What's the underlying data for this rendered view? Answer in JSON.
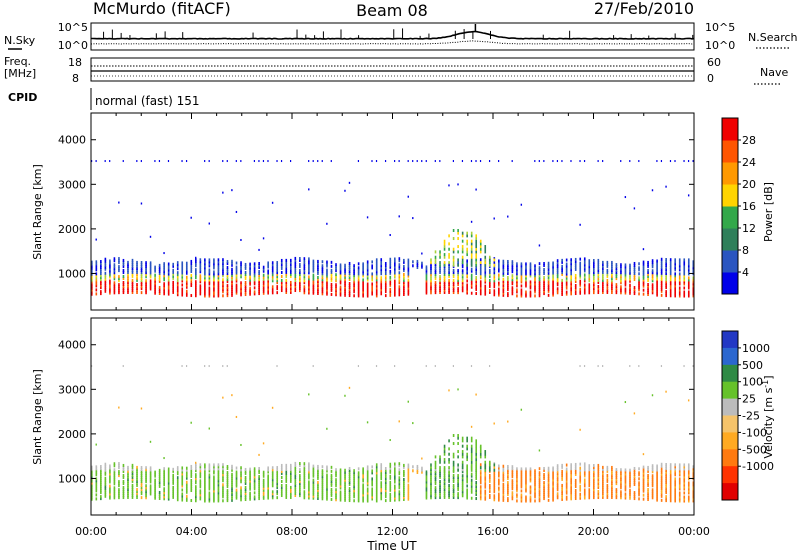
{
  "header": {
    "station": "McMurdo (fitACF)",
    "beam": "Beam 08",
    "date": "27/Feb/2010"
  },
  "status_panels": {
    "nsky_label": "N.Sky",
    "nsky_ticks": [
      "10^5",
      "10^0"
    ],
    "nsearch_label": "N.Search",
    "nsearch_ticks": [
      "10^5",
      "10^0"
    ],
    "freq_label_1": "Freq.",
    "freq_label_2": "[MHz]",
    "freq_ticks": [
      "18",
      "8"
    ],
    "nave_label": "Nave",
    "nave_ticks": [
      "60",
      "0"
    ],
    "cpid_label": "CPID",
    "cpid_value": "normal (fast) 151"
  },
  "colors": {
    "power_scale": [
      "#0000e8",
      "#2a55c0",
      "#2f7f5a",
      "#33a84a",
      "#a8d13a",
      "#ffd400",
      "#ff9900",
      "#ff5500",
      "#f00000"
    ],
    "velocity_scale": [
      "#2238c4",
      "#2b67d0",
      "#2f8a45",
      "#66c22a",
      "#bcbcbc",
      "#f5c36a",
      "#ffaa22",
      "#ff7a10",
      "#ff3300",
      "#e00000"
    ]
  },
  "chart_data": [
    {
      "type": "heatmap",
      "panel": "power",
      "ylabel": "Slant Range [km]",
      "xlim": [
        0,
        24
      ],
      "ylim": [
        180,
        4600
      ],
      "y_ticks": [
        "1000",
        "2000",
        "3000",
        "4000"
      ],
      "colorbar": {
        "label": "Power [dB]",
        "range": [
          0,
          32
        ],
        "tick_labels": [
          "4",
          "8",
          "12",
          "16",
          "20",
          "24",
          "28"
        ]
      },
      "bands": [
        {
          "x": [
            0,
            24
          ],
          "y": [
            500,
            800
          ],
          "value": 28
        },
        {
          "x": [
            0,
            24
          ],
          "y": [
            800,
            1000
          ],
          "value": 18
        },
        {
          "x": [
            0,
            24
          ],
          "y": [
            1000,
            1250
          ],
          "value": 6
        },
        {
          "x": [
            13.3,
            16.2
          ],
          "y": [
            1100,
            2000
          ],
          "value": 16
        },
        {
          "x": [
            0,
            24
          ],
          "y": [
            3450,
            3550
          ],
          "value": 4
        }
      ]
    },
    {
      "type": "heatmap",
      "panel": "velocity",
      "xlabel": "Time UT",
      "x_tick_labels": [
        "00:00",
        "04:00",
        "08:00",
        "12:00",
        "16:00",
        "20:00",
        "00:00"
      ],
      "ylabel": "Slant Range [km]",
      "xlim": [
        0,
        24
      ],
      "ylim": [
        180,
        4600
      ],
      "y_ticks": [
        "1000",
        "2000",
        "3000",
        "4000"
      ],
      "colorbar": {
        "label": "Velocity [m s^-1]",
        "tick_labels": [
          "1000",
          "500",
          "100",
          "25",
          "-25",
          "-100",
          "-500",
          "-1000"
        ]
      },
      "bands": [
        {
          "x": [
            0,
            12.5
          ],
          "y": [
            500,
            1300
          ],
          "value": 100
        },
        {
          "x": [
            12.5,
            13.3
          ],
          "y": [
            500,
            1300
          ],
          "value": 0
        },
        {
          "x": [
            13.3,
            16.2
          ],
          "y": [
            1100,
            2000
          ],
          "value": 100
        },
        {
          "x": [
            15.3,
            24
          ],
          "y": [
            500,
            1300
          ],
          "value": -500
        }
      ]
    }
  ]
}
